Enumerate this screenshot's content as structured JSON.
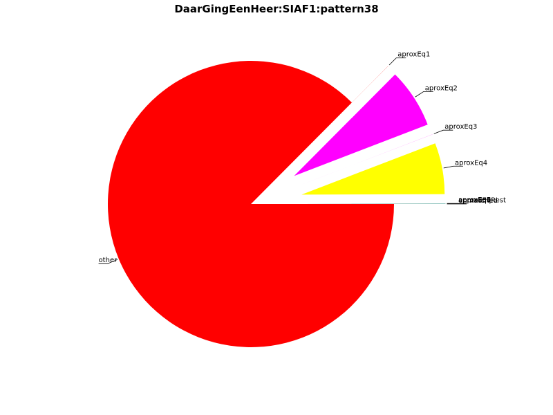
{
  "chart_data": {
    "type": "pie",
    "title": "DaarGingEenHeer:SIAF1:pattern38",
    "start_angle_deg": 0,
    "direction": "clockwise",
    "slices": [
      {
        "label": "other",
        "value": 0.875,
        "color": "#FF0000",
        "explode": 0.0
      },
      {
        "label": "aproxEq1",
        "value": 0.0001,
        "color": "#FF0000",
        "explode": 0.36
      },
      {
        "label": "aproxEq2",
        "value": 0.067,
        "color": "#FF00FF",
        "explode": 0.36
      },
      {
        "label": "aproxEq3",
        "value": 0.0001,
        "color": "#FF00FF",
        "explode": 0.36
      },
      {
        "label": "aproxEq4",
        "value": 0.0578,
        "color": "#FFFF00",
        "explode": 0.36
      },
      {
        "label": "aproxEq5",
        "value": 0.0001,
        "color": "#00FF00",
        "explode": 0.36
      },
      {
        "label": "aproxEq6",
        "value": 0.0001,
        "color": "#00FFFF",
        "explode": 0.36
      },
      {
        "label": "aproxEq7",
        "value": 0.0001,
        "color": "#0000FF",
        "explode": 0.36
      },
      {
        "label": "approxEqRest",
        "value": 0.0001,
        "color": "#888888",
        "explode": 0.36
      },
      {
        "label": "unmatched",
        "value": 0.0001,
        "color": "#000000",
        "explode": 0.36
      }
    ]
  }
}
